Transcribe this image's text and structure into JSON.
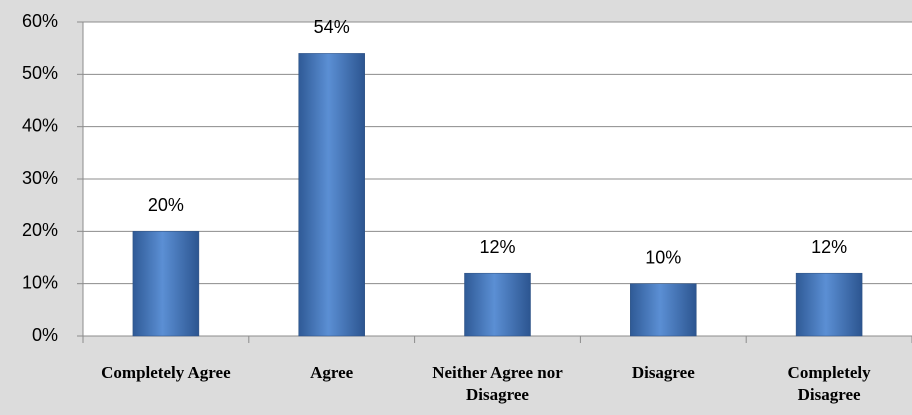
{
  "chart_data": {
    "type": "bar",
    "categories": [
      "Completely Agree",
      "Agree",
      "Neither Agree nor Disagree",
      "Disagree",
      "Completely Disagree"
    ],
    "values": [
      20,
      54,
      12,
      10,
      12
    ],
    "value_labels": [
      "20%",
      "54%",
      "12%",
      "10%",
      "12%"
    ],
    "color": "#4a7ebb",
    "ylim": [
      0,
      60
    ],
    "yticks": [
      {
        "value": 0,
        "label": "0%"
      },
      {
        "value": 10,
        "label": "10%"
      },
      {
        "value": 20,
        "label": "20%"
      },
      {
        "value": 30,
        "label": "30%"
      },
      {
        "value": 40,
        "label": "40%"
      },
      {
        "value": 50,
        "label": "50%"
      },
      {
        "value": 60,
        "label": "60%"
      }
    ],
    "grid": true
  }
}
